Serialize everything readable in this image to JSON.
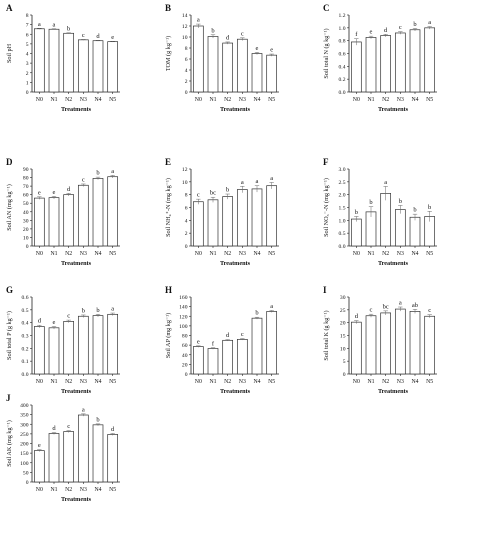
{
  "chart_data": [
    {
      "panel": "A",
      "type": "bar",
      "ylabel": "Soil pH",
      "xlabel": "Treatments",
      "categories": [
        "N0",
        "N1",
        "N2",
        "N3",
        "N4",
        "N5"
      ],
      "values": [
        6.57,
        6.52,
        6.1,
        5.42,
        5.33,
        5.23
      ],
      "errors": [
        0.05,
        0.05,
        0.05,
        0.04,
        0.04,
        0.04
      ],
      "letters": [
        "a",
        "a",
        "b",
        "c",
        "d",
        "e"
      ],
      "ylim": [
        0,
        8
      ],
      "yticks": [
        0,
        1,
        2,
        3,
        4,
        5,
        6,
        7,
        8
      ]
    },
    {
      "panel": "B",
      "type": "bar",
      "ylabel": "TOM (g kg⁻¹)",
      "xlabel": "Treatments",
      "categories": [
        "N0",
        "N1",
        "N2",
        "N3",
        "N4",
        "N5"
      ],
      "values": [
        12.0,
        10.1,
        8.9,
        9.6,
        7.0,
        6.7
      ],
      "errors": [
        0.35,
        0.3,
        0.2,
        0.25,
        0.2,
        0.2
      ],
      "letters": [
        "a",
        "b",
        "d",
        "c",
        "e",
        "e"
      ],
      "ylim": [
        0,
        14
      ],
      "yticks": [
        0,
        2,
        4,
        6,
        8,
        10,
        12,
        14
      ]
    },
    {
      "panel": "C",
      "type": "bar",
      "ylabel": "Soil total N (g kg⁻¹)",
      "xlabel": "Treatments",
      "categories": [
        "N0",
        "N1",
        "N2",
        "N3",
        "N4",
        "N5"
      ],
      "values": [
        0.78,
        0.85,
        0.88,
        0.92,
        0.97,
        1.0
      ],
      "errors": [
        0.05,
        0.02,
        0.02,
        0.02,
        0.02,
        0.02
      ],
      "letters": [
        "f",
        "e",
        "d",
        "c",
        "b",
        "a"
      ],
      "ylim": [
        0,
        1.2
      ],
      "yticks": [
        0.0,
        0.2,
        0.4,
        0.6,
        0.8,
        1.0,
        1.2
      ]
    },
    {
      "panel": "D",
      "type": "bar",
      "ylabel": "Soil AN (mg kg⁻¹)",
      "xlabel": "Treatments",
      "categories": [
        "N0",
        "N1",
        "N2",
        "N3",
        "N4",
        "N5"
      ],
      "values": [
        56,
        56.5,
        60,
        71,
        79,
        81
      ],
      "errors": [
        1.5,
        1.5,
        1.5,
        1.5,
        1.5,
        1.5
      ],
      "letters": [
        "e",
        "e",
        "d",
        "c",
        "b",
        "a"
      ],
      "ylim": [
        0,
        90
      ],
      "yticks": [
        0,
        10,
        20,
        30,
        40,
        50,
        60,
        70,
        80,
        90
      ]
    },
    {
      "panel": "E",
      "type": "bar",
      "ylabel": "Soil NH₄⁺-N (mg kg⁻¹)",
      "xlabel": "Treatments",
      "categories": [
        "N0",
        "N1",
        "N2",
        "N3",
        "N4",
        "N5"
      ],
      "values": [
        6.9,
        7.2,
        7.7,
        8.8,
        8.9,
        9.4
      ],
      "errors": [
        0.4,
        0.4,
        0.4,
        0.5,
        0.5,
        0.5
      ],
      "letters": [
        "c",
        "bc",
        "b",
        "a",
        "a",
        "a"
      ],
      "ylim": [
        0,
        12
      ],
      "yticks": [
        0,
        2,
        4,
        6,
        8,
        10,
        12
      ]
    },
    {
      "panel": "F",
      "type": "bar",
      "ylabel": "Soil NO₃⁻-N (mg kg⁻¹)",
      "xlabel": "Treatments",
      "categories": [
        "N0",
        "N1",
        "N2",
        "N3",
        "N4",
        "N5"
      ],
      "values": [
        1.05,
        1.33,
        2.05,
        1.42,
        1.12,
        1.15
      ],
      "errors": [
        0.1,
        0.2,
        0.27,
        0.16,
        0.12,
        0.2
      ],
      "letters": [
        "b",
        "b",
        "a",
        "b",
        "b",
        "b"
      ],
      "ylim": [
        0,
        3
      ],
      "yticks": [
        0.0,
        0.5,
        1.0,
        1.5,
        2.0,
        2.5,
        3.0
      ]
    },
    {
      "panel": "G",
      "type": "bar",
      "ylabel": "Soil total P (g kg⁻¹)",
      "xlabel": "Treatments",
      "categories": [
        "N0",
        "N1",
        "N2",
        "N3",
        "N4",
        "N5"
      ],
      "values": [
        0.37,
        0.36,
        0.41,
        0.45,
        0.455,
        0.465
      ],
      "errors": [
        0.01,
        0.01,
        0.01,
        0.01,
        0.01,
        0.01
      ],
      "letters": [
        "d",
        "e",
        "c",
        "b",
        "b",
        "a"
      ],
      "ylim": [
        0,
        0.6
      ],
      "yticks": [
        0.0,
        0.1,
        0.2,
        0.3,
        0.4,
        0.5,
        0.6
      ]
    },
    {
      "panel": "H",
      "type": "bar",
      "ylabel": "Soil AP (mg kg⁻¹)",
      "xlabel": "Treatments",
      "categories": [
        "N0",
        "N1",
        "N2",
        "N3",
        "N4",
        "N5"
      ],
      "values": [
        57,
        53,
        70,
        72,
        116,
        130
      ],
      "errors": [
        1.5,
        1.5,
        1.5,
        1.5,
        2,
        2
      ],
      "letters": [
        "e",
        "f",
        "d",
        "c",
        "b",
        "a"
      ],
      "ylim": [
        0,
        160
      ],
      "yticks": [
        0,
        20,
        40,
        60,
        80,
        100,
        120,
        140,
        160
      ]
    },
    {
      "panel": "I",
      "type": "bar",
      "ylabel": "Soil total K (g kg⁻¹)",
      "xlabel": "Treatments",
      "categories": [
        "N0",
        "N1",
        "N2",
        "N3",
        "N4",
        "N5"
      ],
      "values": [
        20.2,
        22.7,
        23.8,
        25.3,
        24.4,
        22.5
      ],
      "errors": [
        0.6,
        0.6,
        0.8,
        0.8,
        0.8,
        0.6
      ],
      "letters": [
        "d",
        "c",
        "bc",
        "a",
        "ab",
        "c"
      ],
      "ylim": [
        0,
        30
      ],
      "yticks": [
        0,
        5,
        10,
        15,
        20,
        25,
        30
      ]
    },
    {
      "panel": "J",
      "type": "bar",
      "ylabel": "Soil AK (mg kg⁻¹)",
      "xlabel": "Treatments",
      "categories": [
        "N0",
        "N1",
        "N2",
        "N3",
        "N4",
        "N5"
      ],
      "values": [
        163,
        252,
        262,
        348,
        297,
        247
      ],
      "errors": [
        5,
        5,
        5,
        6,
        5,
        5
      ],
      "letters": [
        "e",
        "d",
        "c",
        "a",
        "b",
        "d"
      ],
      "ylim": [
        0,
        400
      ],
      "yticks": [
        0,
        50,
        100,
        150,
        200,
        250,
        300,
        350,
        400
      ]
    }
  ]
}
